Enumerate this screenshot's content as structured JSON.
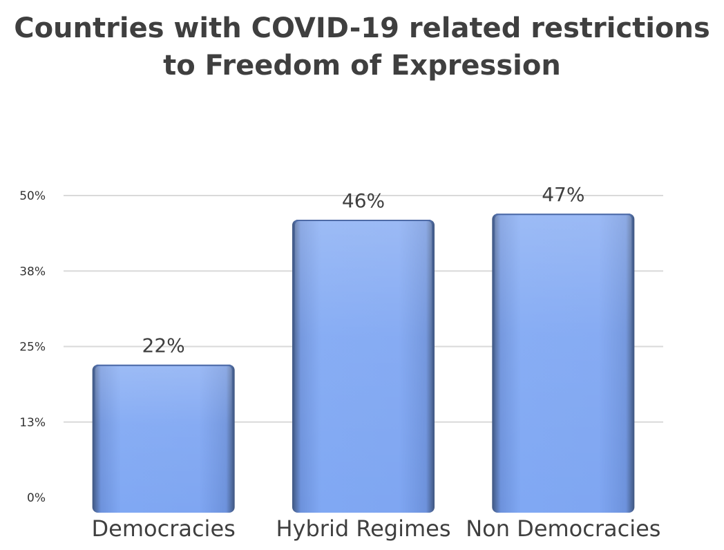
{
  "chart_data": {
    "type": "bar",
    "title": "Countries with COVID-19 related restrictions to Freedom of Expression",
    "categories": [
      "Democracies",
      "Hybrid Regimes",
      "Non Democracies"
    ],
    "values": [
      22,
      46,
      47
    ],
    "data_labels": [
      "22%",
      "46%",
      "47%"
    ],
    "ylim": [
      0,
      50
    ],
    "yticks": [
      0,
      12.5,
      25,
      37.5,
      50
    ],
    "ytick_labels": [
      "0%",
      "13%",
      "25%",
      "38%",
      "50%"
    ],
    "xlabel": "",
    "ylabel": "",
    "grid": true,
    "legend": "none",
    "bar_color": "#7fa6f2"
  }
}
